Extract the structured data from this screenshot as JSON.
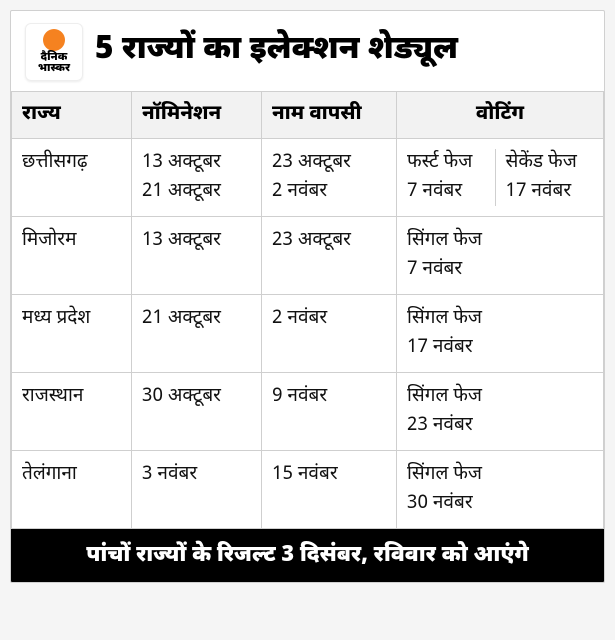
{
  "brand": {
    "line1": "दैनिक",
    "line2": "भास्कर",
    "dot_color": "#f58220"
  },
  "title": "5 राज्यों का इलेक्शन शेड्यूल",
  "columns": {
    "state": "राज्य",
    "nomination": "नॉमिनेशन",
    "withdrawal": "नाम वापसी",
    "voting": "वोटिंग"
  },
  "rows": [
    {
      "state": "छत्तीसगढ़",
      "nomination": [
        "13 अक्टूबर",
        "21 अक्टूबर"
      ],
      "withdrawal": [
        "23 अक्टूबर",
        "2 नवंबर"
      ],
      "voting": [
        {
          "label": "फर्स्ट फेज",
          "date": "7 नवंबर"
        },
        {
          "label": "सेकेंड फेज",
          "date": "17 नवंबर"
        }
      ]
    },
    {
      "state": "मिजोरम",
      "nomination": [
        "13 अक्टूबर"
      ],
      "withdrawal": [
        "23 अक्टूबर"
      ],
      "voting": [
        {
          "label": "सिंगल फेज",
          "date": "7 नवंबर"
        }
      ]
    },
    {
      "state": "मध्य प्रदेश",
      "nomination": [
        "21 अक्टूबर"
      ],
      "withdrawal": [
        "2 नवंबर"
      ],
      "voting": [
        {
          "label": "सिंगल फेज",
          "date": "17 नवंबर"
        }
      ]
    },
    {
      "state": "राजस्थान",
      "nomination": [
        "30 अक्टूबर"
      ],
      "withdrawal": [
        "9 नवंबर"
      ],
      "voting": [
        {
          "label": "सिंगल फेज",
          "date": "23 नवंबर"
        }
      ]
    },
    {
      "state": "तेलंगाना",
      "nomination": [
        "3 नवंबर"
      ],
      "withdrawal": [
        "15 नवंबर"
      ],
      "voting": [
        {
          "label": "सिंगल फेज",
          "date": "30 नवंबर"
        }
      ]
    }
  ],
  "footer": "पांचों राज्यों के रिजल्ट 3 दिसंबर, रविवार को आएंगे",
  "styling": {
    "type": "table",
    "card_bg": "#ffffff",
    "border_color": "#cfcfcf",
    "header_bg": "#f2f2f2",
    "footer_bg": "#000000",
    "footer_text": "#ffffff",
    "title_fontsize": 32,
    "header_fontsize": 20,
    "cell_fontsize": 19,
    "footer_fontsize": 22
  }
}
